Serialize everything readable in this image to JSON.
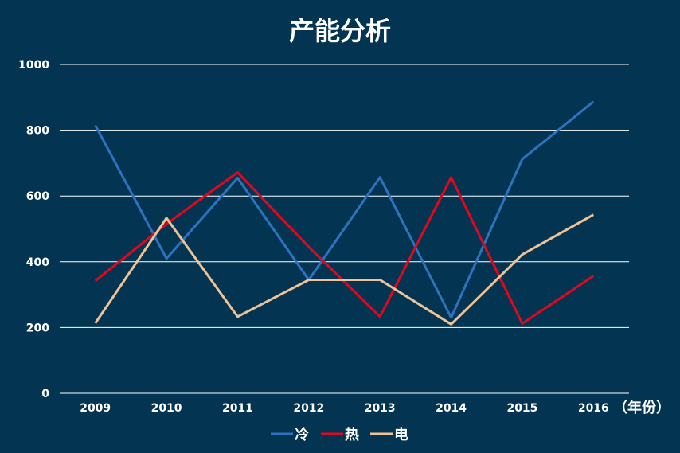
{
  "chart_data": {
    "type": "line",
    "title": "产能分析",
    "x_unit_label": "（年份）",
    "categories": [
      "2009",
      "2010",
      "2011",
      "2012",
      "2013",
      "2014",
      "2015",
      "2016"
    ],
    "ylim": [
      0,
      1000
    ],
    "y_ticks": [
      "0",
      "200",
      "400",
      "600",
      "800",
      "1000"
    ],
    "grid": true,
    "legend_position": "bottom",
    "series": [
      {
        "name": "冷",
        "color": "#2f72bd",
        "values": [
          815,
          410,
          655,
          345,
          657,
          230,
          712,
          887
        ]
      },
      {
        "name": "热",
        "color": "#e3061c",
        "values": [
          342,
          515,
          672,
          445,
          233,
          657,
          212,
          357
        ]
      },
      {
        "name": "电",
        "color": "#f0c396",
        "values": [
          213,
          533,
          233,
          345,
          345,
          210,
          422,
          543
        ]
      }
    ]
  }
}
